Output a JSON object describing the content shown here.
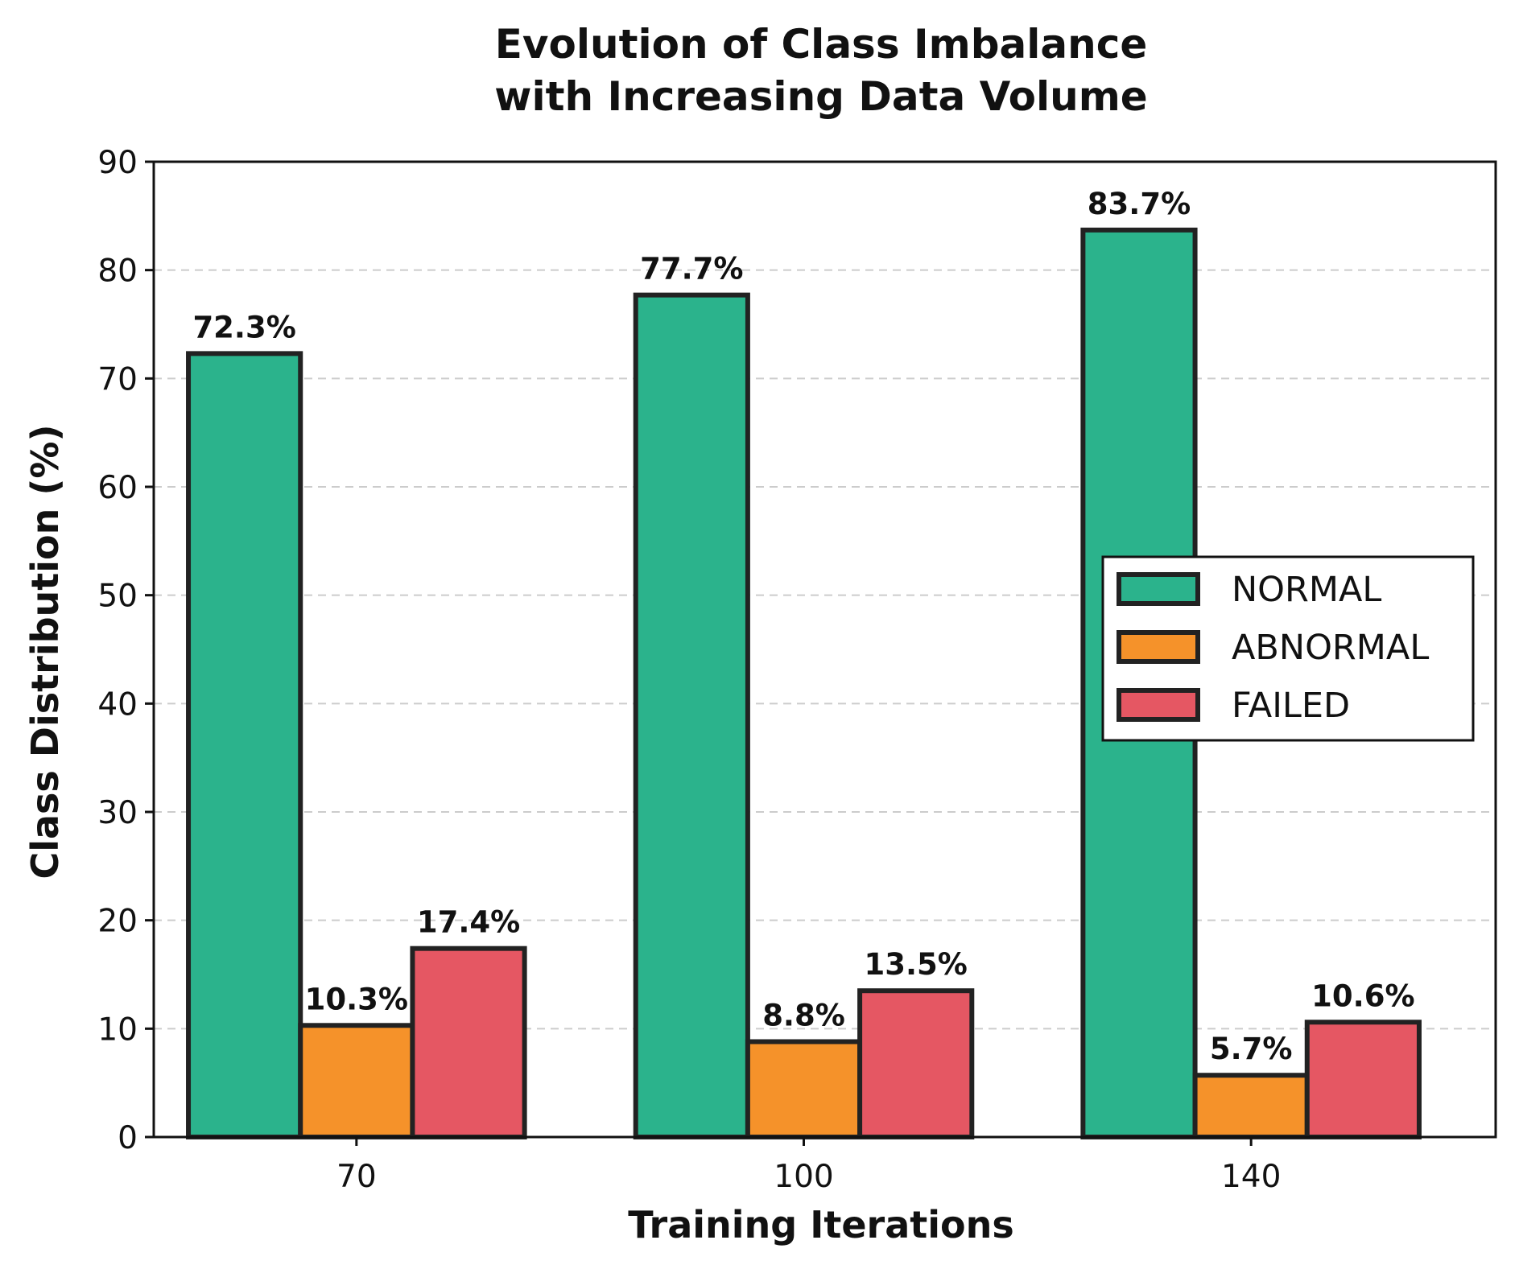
{
  "chart_data": {
    "type": "bar",
    "title_lines": [
      "Evolution of Class Imbalance",
      "with Increasing Data Volume"
    ],
    "xlabel": "Training Iterations",
    "ylabel": "Class Distribution (%)",
    "categories": [
      "70",
      "100",
      "140"
    ],
    "ylim": [
      0,
      90
    ],
    "yticks": [
      0,
      10,
      20,
      30,
      40,
      50,
      60,
      70,
      80,
      90
    ],
    "grid": true,
    "legend_position": "center-right",
    "series": [
      {
        "name": "NORMAL",
        "color": "#2bb38c",
        "values": [
          72.3,
          77.7,
          83.7
        ],
        "labels": [
          "72.3%",
          "77.7%",
          "83.7%"
        ]
      },
      {
        "name": "ABNORMAL",
        "color": "#f5922a",
        "values": [
          10.3,
          8.8,
          5.7
        ],
        "labels": [
          "10.3%",
          "8.8%",
          "5.7%"
        ]
      },
      {
        "name": "FAILED",
        "color": "#e55763",
        "values": [
          17.4,
          13.5,
          10.6
        ],
        "labels": [
          "17.4%",
          "13.5%",
          "10.6%"
        ]
      }
    ]
  }
}
